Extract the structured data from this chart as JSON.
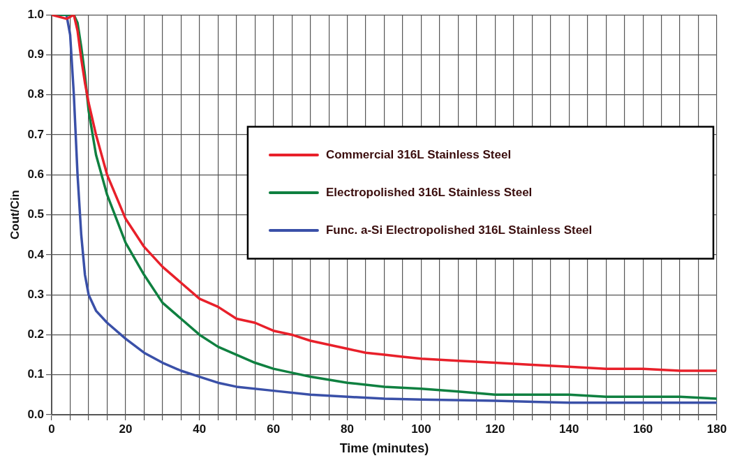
{
  "chart_data": {
    "type": "line",
    "xlabel": "Time (minutes)",
    "ylabel": "Cout/Cin",
    "xlim": [
      0,
      180
    ],
    "ylim": [
      0,
      1
    ],
    "xticks": [
      0,
      {
        "value": 5,
        "label": null
      },
      {
        "value": 10,
        "label": null
      },
      {
        "value": 15,
        "label": null
      },
      20,
      {
        "value": 25,
        "label": null
      },
      {
        "value": 30,
        "label": null
      },
      {
        "value": 35,
        "label": null
      },
      40,
      {
        "value": 45,
        "label": null
      },
      {
        "value": 50,
        "label": null
      },
      {
        "value": 55,
        "label": null
      },
      60,
      {
        "value": 65,
        "label": null
      },
      {
        "value": 70,
        "label": null
      },
      {
        "value": 75,
        "label": null
      },
      80,
      {
        "value": 85,
        "label": null
      },
      {
        "value": 90,
        "label": null
      },
      {
        "value": 95,
        "label": null
      },
      100,
      {
        "value": 105,
        "label": null
      },
      {
        "value": 110,
        "label": null
      },
      {
        "value": 115,
        "label": null
      },
      120,
      {
        "value": 125,
        "label": null
      },
      {
        "value": 130,
        "label": null
      },
      {
        "value": 135,
        "label": null
      },
      140,
      {
        "value": 145,
        "label": null
      },
      {
        "value": 150,
        "label": null
      },
      {
        "value": 155,
        "label": null
      },
      160,
      {
        "value": 165,
        "label": null
      },
      {
        "value": 170,
        "label": null
      },
      {
        "value": 175,
        "label": null
      },
      180
    ],
    "yticks": [
      {
        "value": 0,
        "label": "0.0"
      },
      0.1,
      0.2,
      0.3,
      0.4,
      0.5,
      0.6,
      0.7,
      0.8,
      0.9,
      {
        "value": 1,
        "label": "1.0"
      }
    ],
    "grid": true,
    "legend": "right",
    "marker": "none",
    "line_style": "solid",
    "series": [
      {
        "name": "Commercial 316L Stainless Steel",
        "color": "#e8202a",
        "x": [
          0,
          4,
          6,
          7,
          8,
          9,
          10,
          12,
          15,
          20,
          25,
          30,
          35,
          40,
          45,
          50,
          55,
          60,
          65,
          70,
          75,
          80,
          85,
          90,
          95,
          100,
          110,
          120,
          130,
          140,
          150,
          160,
          170,
          180
        ],
        "values": [
          1,
          0.99,
          1,
          0.96,
          0.89,
          0.83,
          0.78,
          0.7,
          0.6,
          0.49,
          0.42,
          0.37,
          0.33,
          0.29,
          0.27,
          0.24,
          0.23,
          0.21,
          0.2,
          0.185,
          0.175,
          0.165,
          0.155,
          0.15,
          0.145,
          0.14,
          0.135,
          0.13,
          0.125,
          0.12,
          0.115,
          0.115,
          0.11,
          0.11
        ]
      },
      {
        "name": "Electropolished 316L Stainless Steel",
        "color": "#0f8040",
        "x": [
          0,
          4,
          6,
          7,
          8,
          9,
          10,
          12,
          15,
          20,
          25,
          30,
          35,
          40,
          45,
          50,
          55,
          60,
          65,
          70,
          80,
          90,
          100,
          110,
          120,
          130,
          140,
          150,
          160,
          170,
          180
        ],
        "values": [
          1,
          1,
          1,
          0.98,
          0.92,
          0.85,
          0.76,
          0.65,
          0.55,
          0.43,
          0.35,
          0.28,
          0.24,
          0.2,
          0.17,
          0.15,
          0.13,
          0.115,
          0.105,
          0.095,
          0.08,
          0.07,
          0.065,
          0.058,
          0.05,
          0.05,
          0.05,
          0.045,
          0.045,
          0.045,
          0.04
        ]
      },
      {
        "name": "Func. a-Si Electropolished 316L Stainless Steel",
        "color": "#3a50a8",
        "x": [
          0,
          4,
          5,
          6,
          7,
          8,
          9,
          10,
          12,
          15,
          20,
          25,
          30,
          35,
          40,
          45,
          50,
          60,
          70,
          80,
          90,
          100,
          120,
          140,
          160,
          180
        ],
        "values": [
          1,
          1,
          0.95,
          0.8,
          0.6,
          0.45,
          0.35,
          0.3,
          0.26,
          0.23,
          0.19,
          0.155,
          0.13,
          0.11,
          0.095,
          0.08,
          0.07,
          0.06,
          0.05,
          0.045,
          0.04,
          0.038,
          0.035,
          0.03,
          0.03,
          0.03
        ]
      }
    ]
  }
}
